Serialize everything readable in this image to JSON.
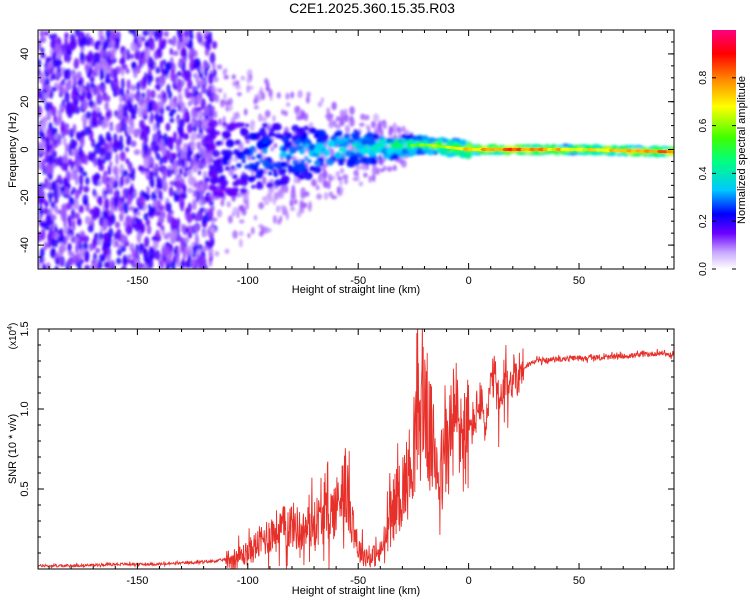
{
  "title": "C2E1.2025.360.15.35.R03",
  "chart_data": [
    {
      "type": "heatmap",
      "xlabel": "Height of straight line (km)",
      "ylabel": "Frequency (Hz)",
      "xlim": [
        -195,
        93
      ],
      "ylim": [
        -50,
        50
      ],
      "xticks": [
        -150,
        -100,
        -50,
        0,
        50
      ],
      "yticks": [
        -40,
        -20,
        0,
        20,
        40
      ],
      "colorbar": {
        "label": "Normalized spectral amplitude",
        "range": [
          0.0,
          1.0
        ],
        "ticks": [
          0.0,
          0.2,
          0.4,
          0.6,
          0.8
        ],
        "colormap": [
          "#ffffff",
          "#6a00ff",
          "#0000ff",
          "#00e0ff",
          "#00ff40",
          "#ffff00",
          "#ff8000",
          "#ff0000",
          "#ff0080"
        ]
      },
      "description_of_ridge": {
        "x": [
          -115,
          -100,
          -80,
          -60,
          -40,
          -20,
          0,
          20,
          50,
          93
        ],
        "center_freq": [
          -5,
          -3,
          -2,
          0,
          1,
          2,
          0,
          0,
          0,
          -1
        ],
        "peak_amplitude": [
          0.2,
          0.3,
          0.35,
          0.4,
          0.45,
          0.55,
          0.7,
          0.85,
          0.65,
          0.8
        ]
      }
    },
    {
      "type": "line",
      "xlabel": "Height of straight line (km)",
      "ylabel": "SNR (10 * v/v)",
      "yscale_label": "(x10",
      "yscale_exp": "4",
      "xlim": [
        -195,
        93
      ],
      "ylim": [
        0,
        1.5
      ],
      "xticks": [
        -150,
        -100,
        -50,
        0,
        50
      ],
      "yticks": [
        0.5,
        1.0,
        1.5
      ],
      "yticklabels": [
        "0.5",
        "1.0",
        "1.5"
      ],
      "series": [
        {
          "name": "SNR",
          "color": "#e8302a",
          "x": [
            -195,
            -180,
            -160,
            -140,
            -125,
            -115,
            -105,
            -100,
            -95,
            -90,
            -85,
            -80,
            -75,
            -70,
            -65,
            -60,
            -57,
            -55,
            -52,
            -50,
            -45,
            -40,
            -37,
            -35,
            -32,
            -30,
            -27,
            -25,
            -22,
            -20,
            -18,
            -15,
            -12,
            -10,
            -7,
            -5,
            -2,
            0,
            3,
            5,
            8,
            10,
            12,
            14,
            16,
            18,
            20,
            25,
            30,
            40,
            50,
            60,
            70,
            80,
            88,
            93
          ],
          "y": [
            0.02,
            0.02,
            0.03,
            0.03,
            0.04,
            0.05,
            0.07,
            0.1,
            0.16,
            0.22,
            0.25,
            0.28,
            0.23,
            0.3,
            0.32,
            0.38,
            0.55,
            0.45,
            0.28,
            0.12,
            0.07,
            0.1,
            0.22,
            0.35,
            0.45,
            0.5,
            0.6,
            0.8,
            0.95,
            1.1,
            0.85,
            0.7,
            0.6,
            0.75,
            0.9,
            0.95,
            0.8,
            0.85,
            0.95,
            1.05,
            0.9,
            1.15,
            1.2,
            1.0,
            1.1,
            1.15,
            1.2,
            1.26,
            1.3,
            1.31,
            1.32,
            1.32,
            1.33,
            1.34,
            1.35,
            1.33
          ]
        }
      ]
    }
  ]
}
